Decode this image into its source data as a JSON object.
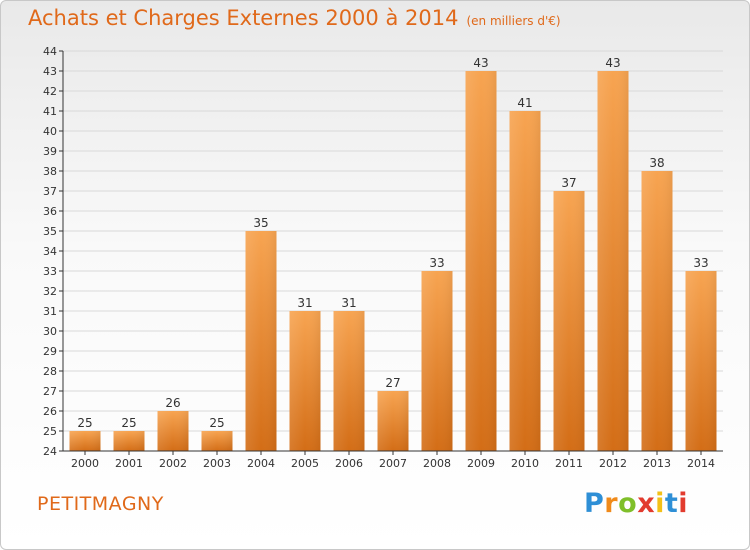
{
  "page": {
    "title": "Achats et Charges Externes 2000 à 2014",
    "unit": "(en milliers d'€)",
    "commune": "PETITMAGNY",
    "logo_text": "Proxiti"
  },
  "colors": {
    "accent": "#e0691a",
    "bar_top": "#f7a451",
    "bar_bottom": "#d36d16",
    "grid": "#d9d9d9",
    "axis": "#333333"
  },
  "chart_data": {
    "type": "bar",
    "title": "Achats et Charges Externes 2000 à 2014",
    "subtitle": "(en milliers d'€)",
    "xlabel": "",
    "ylabel": "",
    "categories": [
      "2000",
      "2001",
      "2002",
      "2003",
      "2004",
      "2005",
      "2006",
      "2007",
      "2008",
      "2009",
      "2010",
      "2011",
      "2012",
      "2013",
      "2014"
    ],
    "values": [
      25,
      25,
      26,
      25,
      35,
      31,
      31,
      27,
      33,
      43,
      41,
      37,
      43,
      38,
      33
    ],
    "ylim": [
      24,
      44
    ],
    "yticks": [
      24,
      25,
      26,
      27,
      28,
      29,
      30,
      31,
      32,
      33,
      34,
      35,
      36,
      37,
      38,
      39,
      40,
      41,
      42,
      43,
      44
    ],
    "grid": true,
    "data_labels": true,
    "legend": "none"
  }
}
